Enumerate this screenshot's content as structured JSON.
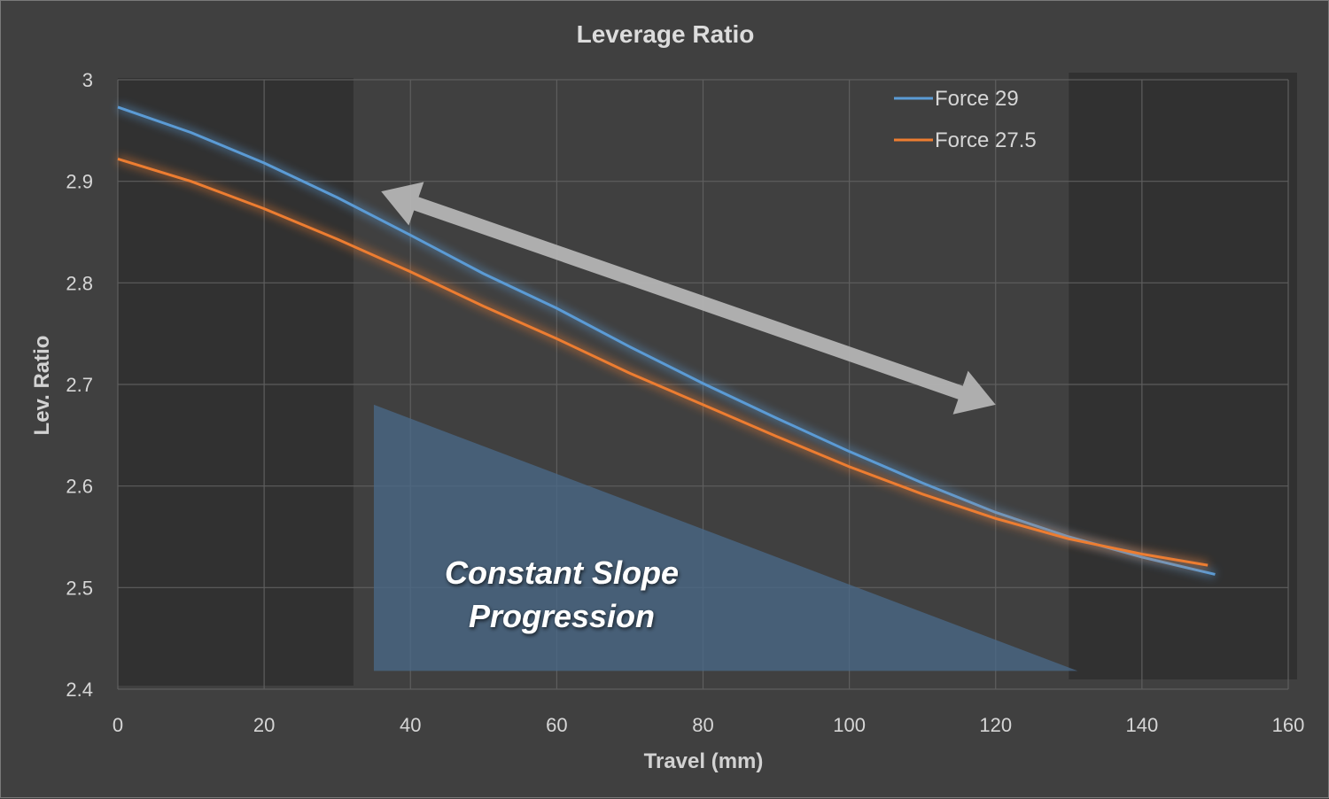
{
  "chart_data": {
    "type": "line",
    "title": "Leverage Ratio",
    "xlabel": "Travel (mm)",
    "ylabel": "Lev. Ratio",
    "xlim": [
      0,
      160
    ],
    "ylim": [
      2.4,
      3.0
    ],
    "x_ticks": [
      "0",
      "20",
      "40",
      "60",
      "80",
      "100",
      "120",
      "140",
      "160"
    ],
    "y_ticks": [
      "2.4",
      "2.5",
      "2.6",
      "2.7",
      "2.8",
      "2.9",
      "3"
    ],
    "grid": true,
    "legend_position": "top-right",
    "series": [
      {
        "name": "Force 29",
        "color": "#5b9bd5",
        "x": [
          0,
          10,
          20,
          30,
          40,
          50,
          60,
          70,
          80,
          90,
          100,
          110,
          120,
          130,
          140,
          150
        ],
        "values": [
          2.973,
          2.948,
          2.918,
          2.884,
          2.847,
          2.809,
          2.775,
          2.737,
          2.701,
          2.667,
          2.634,
          2.603,
          2.574,
          2.55,
          2.53,
          2.513
        ]
      },
      {
        "name": "Force 27.5",
        "color": "#ed7d31",
        "x": [
          0,
          10,
          20,
          30,
          40,
          50,
          60,
          70,
          80,
          90,
          100,
          110,
          120,
          130,
          140,
          149
        ],
        "values": [
          2.922,
          2.9,
          2.873,
          2.843,
          2.811,
          2.777,
          2.745,
          2.711,
          2.68,
          2.649,
          2.619,
          2.592,
          2.568,
          2.548,
          2.533,
          2.522
        ]
      }
    ],
    "annotations": {
      "triangle_label_line1": "Constant Slope",
      "triangle_label_line2": "Progression"
    },
    "shaded_regions_x": [
      [
        0,
        31
      ],
      [
        130,
        160
      ]
    ],
    "triangle_region": {
      "x_from": 35,
      "x_to": 130,
      "y_top": 2.68,
      "y_bottom": 2.418
    },
    "arrow": {
      "from": [
        120,
        2.68
      ],
      "to": [
        36,
        2.89
      ]
    }
  }
}
